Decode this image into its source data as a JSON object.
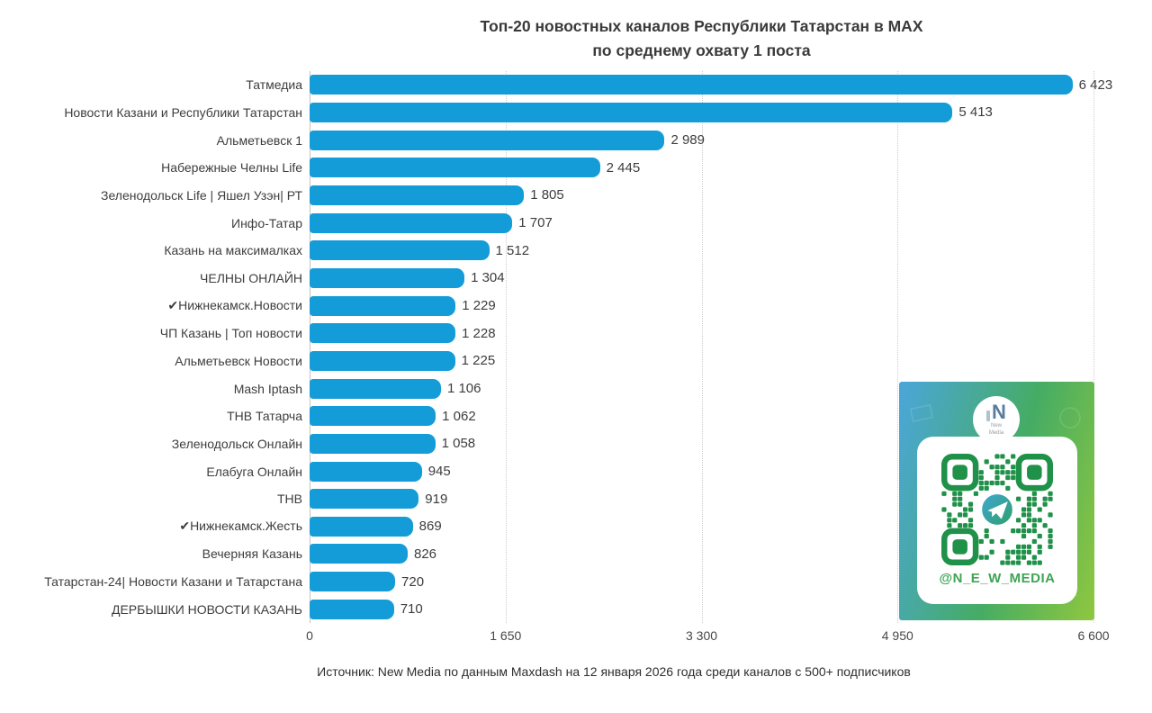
{
  "title": {
    "line1": "Топ-20 новостных каналов Республики Татарстан в MAX",
    "line2": "по среднему охвату 1 поста"
  },
  "chart_data": {
    "type": "bar",
    "orientation": "horizontal",
    "title": "Топ-20 новостных каналов Республики Татарстан в MAX по среднему охвату 1 поста",
    "categories": [
      "Татмедиа",
      "Новости Казани и Республики Татарстан",
      "Альметьевск 1",
      "Набережные Челны Life",
      "Зеленодольск Life | Яшел Узэн| РТ",
      "Инфо-Татар",
      "Казань на максималках",
      "ЧЕЛНЫ ОНЛАЙН",
      "✔Нижнекамск.Новости",
      "ЧП Казань | Топ новости",
      "Альметьевск Новости",
      "Mash Iptash",
      "ТНВ Татарча",
      "Зеленодольск Онлайн",
      "Елабуга Онлайн",
      "ТНВ",
      "✔Нижнекамск.Жесть",
      "Вечерняя Казань",
      "Татарстан-24| Новости Казани и Татарстана",
      "ДЕРБЫШКИ НОВОСТИ КАЗАНЬ"
    ],
    "values": [
      6423,
      5413,
      2989,
      2445,
      1805,
      1707,
      1512,
      1304,
      1229,
      1228,
      1225,
      1106,
      1062,
      1058,
      945,
      919,
      869,
      826,
      720,
      710
    ],
    "value_labels": [
      "6 423",
      "5 413",
      "2 989",
      "2 445",
      "1 805",
      "1 707",
      "1 512",
      "1 304",
      "1 229",
      "1 228",
      "1 225",
      "1 106",
      "1 062",
      "1 058",
      "945",
      "919",
      "869",
      "826",
      "720",
      "710"
    ],
    "xlabel": "",
    "ylabel": "",
    "xlim": [
      0,
      6600
    ],
    "x_ticks": [
      {
        "value": 0,
        "label": "0"
      },
      {
        "value": 1650,
        "label": "1 650"
      },
      {
        "value": 3300,
        "label": "3 300"
      },
      {
        "value": 4950,
        "label": "4 950"
      },
      {
        "value": 6600,
        "label": "6 600"
      }
    ],
    "grid": "vertical dotted gridlines",
    "legend": "none",
    "bar_color": "#149CD8"
  },
  "promo": {
    "handle": "@N_E_W_MEDIA",
    "logo_letter": "N",
    "logo_caption": [
      "New",
      "Media"
    ],
    "qr_color": "#1F9149",
    "handle_color": "#3FA455"
  },
  "footer": {
    "source": "Источник: New Media по данным Maxdash на 12 января 2026 года среди каналов с 500+ подписчиков"
  },
  "colors": {
    "bar": "#149CD8",
    "text": "#3d3d3d",
    "gridline": "#cdcdcd",
    "promo_gradient": [
      "#4BA6DA",
      "#45AC64",
      "#8FC73F"
    ]
  }
}
